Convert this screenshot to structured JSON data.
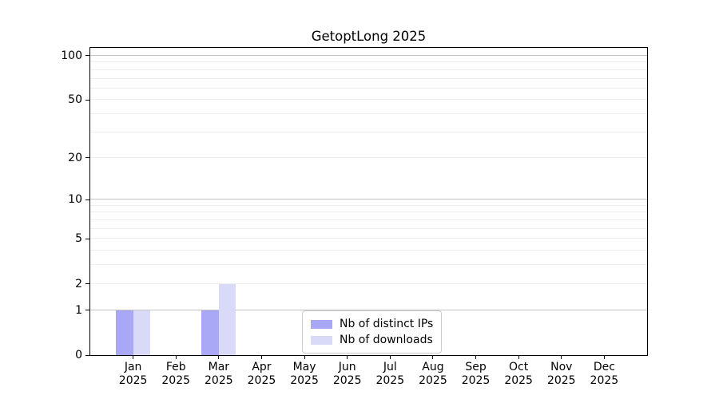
{
  "page": {
    "background": "#ffffff"
  },
  "chart_data": {
    "type": "bar",
    "title": "GetoptLong 2025",
    "months": [
      "Jan",
      "Feb",
      "Mar",
      "Apr",
      "May",
      "Jun",
      "Jul",
      "Aug",
      "Sep",
      "Oct",
      "Nov",
      "Dec"
    ],
    "year_label": "2025",
    "series": [
      {
        "name": "Nb of distinct IPs",
        "color": "#a8a8f7",
        "values": [
          1,
          0,
          1,
          0,
          0,
          0,
          0,
          0,
          0,
          0,
          0,
          0
        ]
      },
      {
        "name": "Nb of downloads",
        "color": "#d9d9f8",
        "values": [
          1,
          0,
          2,
          0,
          0,
          0,
          0,
          0,
          0,
          0,
          0,
          0
        ]
      }
    ],
    "y_ticks": [
      0,
      1,
      2,
      5,
      10,
      20,
      50,
      100
    ],
    "major_gridlines": [
      1,
      10,
      100
    ],
    "minor_gridlines": [
      2,
      3,
      4,
      5,
      6,
      7,
      8,
      9,
      20,
      30,
      40,
      50,
      60,
      70,
      80,
      90
    ],
    "scale": "log1p",
    "ylim": [
      0,
      113
    ],
    "grid": true,
    "legend_position": "bottom-center"
  },
  "colors": {
    "axis": "#000000",
    "major_grid": "#c3c3c3",
    "minor_grid": "#ededed",
    "legend_border": "#cccccc"
  }
}
